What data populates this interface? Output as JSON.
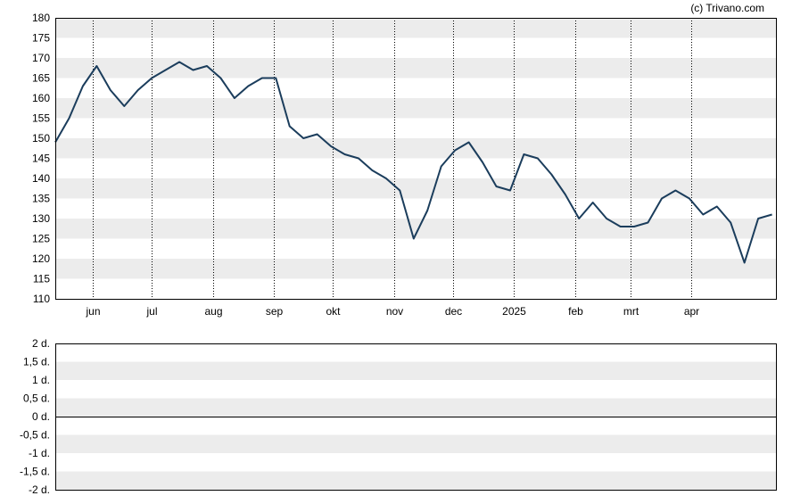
{
  "copyright": "(c) Trivano.com",
  "colors": {
    "line": "#1b3d5c",
    "band": "#ececec",
    "background": "#ffffff",
    "axis": "#000000"
  },
  "chart_data": [
    {
      "type": "line",
      "title": "",
      "xlabel": "",
      "ylabel": "",
      "ylim": [
        110,
        180
      ],
      "yticks": [
        110,
        115,
        120,
        125,
        130,
        135,
        140,
        145,
        150,
        155,
        160,
        165,
        170,
        175,
        180
      ],
      "month_labels": [
        "jun",
        "jul",
        "aug",
        "sep",
        "okt",
        "nov",
        "dec",
        "2025",
        "feb",
        "mrt",
        "apr"
      ],
      "grid": "dotted vertical month lines, alternating horizontal bands",
      "x": [
        "2024-05-13",
        "2024-05-20",
        "2024-05-27",
        "2024-06-03",
        "2024-06-10",
        "2024-06-17",
        "2024-06-24",
        "2024-07-01",
        "2024-07-08",
        "2024-07-15",
        "2024-07-22",
        "2024-07-29",
        "2024-08-05",
        "2024-08-12",
        "2024-08-19",
        "2024-08-26",
        "2024-09-02",
        "2024-09-09",
        "2024-09-16",
        "2024-09-23",
        "2024-09-30",
        "2024-10-07",
        "2024-10-14",
        "2024-10-21",
        "2024-10-28",
        "2024-11-04",
        "2024-11-11",
        "2024-11-18",
        "2024-11-25",
        "2024-12-02",
        "2024-12-09",
        "2024-12-16",
        "2024-12-23",
        "2024-12-30",
        "2025-01-06",
        "2025-01-13",
        "2025-01-20",
        "2025-01-27",
        "2025-02-03",
        "2025-02-10",
        "2025-02-17",
        "2025-02-24",
        "2025-03-03",
        "2025-03-10",
        "2025-03-17",
        "2025-03-24",
        "2025-03-31",
        "2025-04-07",
        "2025-04-14",
        "2025-04-21",
        "2025-04-28",
        "2025-05-05",
        "2025-05-12"
      ],
      "series": [
        {
          "values": [
            149,
            155,
            163,
            168,
            162,
            158,
            162,
            165,
            167,
            169,
            167,
            168,
            165,
            160,
            163,
            165,
            165,
            153,
            150,
            151,
            148,
            146,
            145,
            142,
            140,
            137,
            125,
            132,
            143,
            147,
            149,
            144,
            138,
            137,
            146,
            145,
            141,
            136,
            130,
            134,
            130,
            128,
            128,
            129,
            135,
            137,
            135,
            131,
            133,
            129,
            119,
            130,
            131
          ]
        }
      ]
    },
    {
      "type": "line",
      "title": "",
      "ylim": [
        -2,
        2
      ],
      "ytick_labels": [
        "2 d.",
        "1,5 d.",
        "1 d.",
        "0,5 d.",
        "0 d.",
        "-0,5 d.",
        "-1 d.",
        "-1,5 d.",
        "-2 d."
      ],
      "series": []
    }
  ]
}
